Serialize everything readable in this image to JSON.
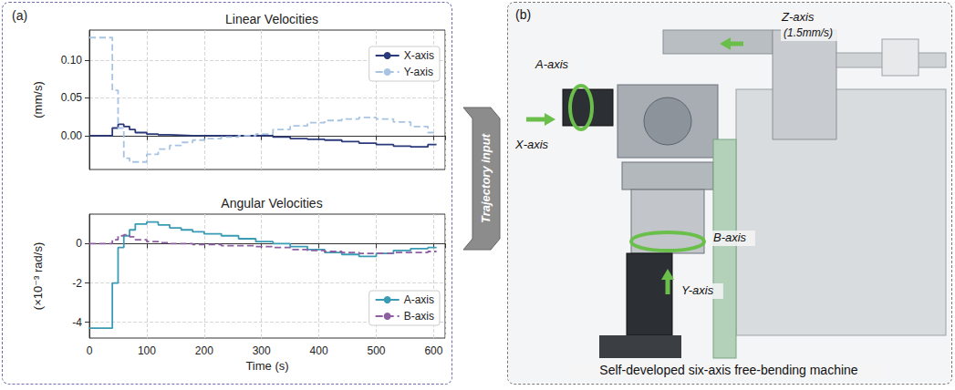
{
  "chart_data": [
    {
      "type": "line",
      "title": "Linear Velocities",
      "y_label": "(mm/s)",
      "x": [
        0,
        40,
        50,
        60,
        70,
        80,
        100,
        120,
        140,
        160,
        180,
        200,
        230,
        260,
        290,
        320,
        350,
        380,
        410,
        440,
        470,
        500,
        530,
        560,
        590,
        605
      ],
      "series": [
        {
          "name": "X-axis",
          "color": "#2b3a7a",
          "line_style": "solid",
          "values": [
            0,
            0.01,
            0.015,
            0.012,
            0.008,
            0.004,
            0.002,
            0.001,
            0.0005,
            0,
            0,
            0,
            0,
            0,
            0,
            -0.002,
            -0.004,
            -0.005,
            -0.006,
            -0.008,
            -0.01,
            -0.012,
            -0.014,
            -0.015,
            -0.012,
            -0.012
          ]
        },
        {
          "name": "Y-axis",
          "color": "#a9c4e2",
          "line_style": "dashed",
          "values": [
            0.13,
            0.06,
            0.01,
            -0.03,
            -0.035,
            -0.035,
            -0.025,
            -0.018,
            -0.013,
            -0.009,
            -0.006,
            -0.004,
            -0.002,
            0,
            0.002,
            0.008,
            0.013,
            0.017,
            0.02,
            0.022,
            0.024,
            0.022,
            0.018,
            0.012,
            0.004,
            0.004
          ]
        }
      ],
      "xlim": [
        0,
        620
      ],
      "xticks": [
        0,
        100,
        200,
        300,
        400,
        500,
        600
      ],
      "ylim": [
        -0.045,
        0.14
      ],
      "yticks": [
        {
          "value": 0,
          "label": "0.00"
        },
        {
          "value": 0.05,
          "label": "0.05"
        },
        {
          "value": 0.1,
          "label": "0.10"
        }
      ],
      "grid": true,
      "legend": "upper right",
      "tick_labels": "y"
    },
    {
      "type": "line",
      "title": "Angular Velocities",
      "y_label": "(×10⁻³ rad/s)",
      "x_label": "Time (s)",
      "x": [
        0,
        40,
        50,
        60,
        70,
        80,
        100,
        120,
        140,
        160,
        180,
        200,
        230,
        260,
        290,
        320,
        350,
        380,
        410,
        440,
        470,
        500,
        530,
        560,
        590,
        605
      ],
      "series": [
        {
          "name": "A-axis",
          "color": "#3a9bb5",
          "line_style": "solid",
          "values": [
            -4.3,
            -2.0,
            -0.2,
            0.4,
            0.7,
            1.0,
            1.1,
            0.95,
            0.8,
            0.7,
            0.6,
            0.5,
            0.4,
            0.25,
            0.1,
            0,
            -0.15,
            -0.3,
            -0.45,
            -0.55,
            -0.65,
            -0.5,
            -0.35,
            -0.25,
            -0.2,
            -0.2
          ]
        },
        {
          "name": "B-axis",
          "color": "#8e5ea2",
          "line_style": "dashed",
          "values": [
            0,
            0.2,
            0.4,
            0.45,
            0.35,
            0.2,
            0.1,
            0.05,
            0,
            0,
            -0.05,
            -0.05,
            -0.1,
            -0.1,
            -0.15,
            -0.2,
            -0.3,
            -0.35,
            -0.4,
            -0.45,
            -0.5,
            -0.5,
            -0.45,
            -0.45,
            -0.4,
            -0.4
          ]
        }
      ],
      "xlim": [
        0,
        620
      ],
      "xticks": [
        0,
        100,
        200,
        300,
        400,
        500,
        600
      ],
      "ylim": [
        -4.8,
        1.5
      ],
      "yticks": [
        -4,
        -2,
        0
      ],
      "grid": true,
      "legend": "lower right"
    }
  ],
  "panel_a_label": "(a)",
  "connector": "Trajectory input",
  "panel_b": {
    "label": "(b)",
    "caption": "Self-developed six-axis free-bending machine",
    "annotations": [
      {
        "text": "Z-axis",
        "note": "(1.5mm/s)"
      },
      {
        "text": "A-axis"
      },
      {
        "text": "X-axis"
      },
      {
        "text": "B-axis"
      },
      {
        "text": "Y-axis"
      }
    ]
  }
}
